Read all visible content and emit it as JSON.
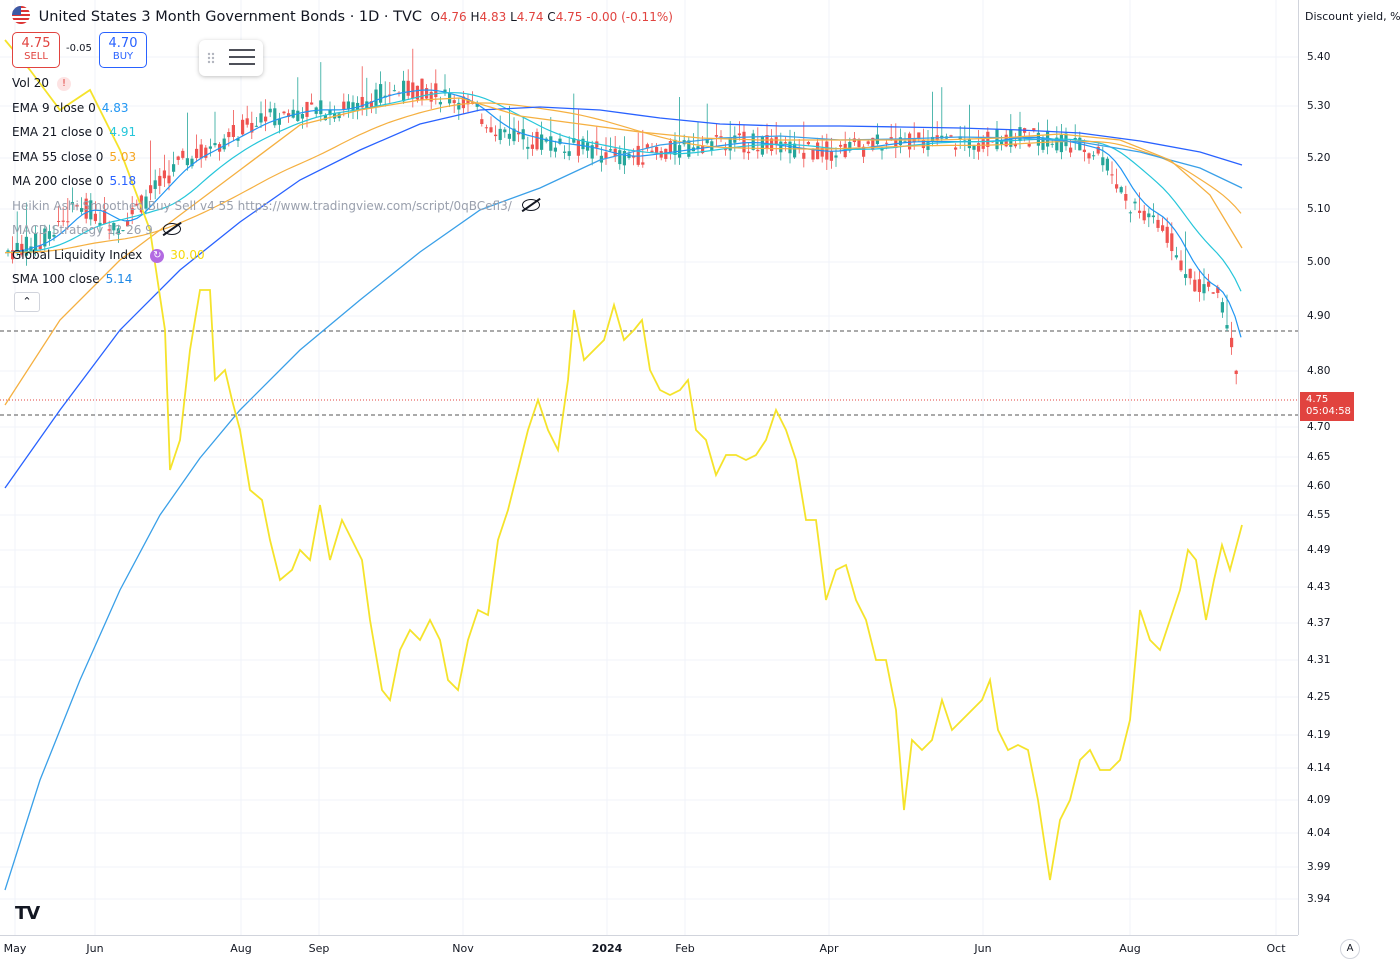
{
  "header": {
    "symbol_title": "United States 3 Month Government Bonds · 1D · TVC",
    "ohlc": {
      "o_label": "O",
      "o": "4.76",
      "h_label": "H",
      "h": "4.83",
      "l_label": "L",
      "l": "4.74",
      "c_label": "C",
      "c": "4.75",
      "change": "-0.00 (-0.11%)"
    },
    "flag_icon": "us-flag-icon"
  },
  "trade": {
    "sell_price": "4.75",
    "sell_label": "SELL",
    "spread": "-0.05",
    "buy_price": "4.70",
    "buy_label": "BUY"
  },
  "indicators": [
    {
      "name": "Vol 20",
      "value": "",
      "color": "#131722",
      "badge": "!"
    },
    {
      "name": "EMA 9 close 0",
      "value": "4.83",
      "color": "#2196f3"
    },
    {
      "name": "EMA 21 close 0",
      "value": "4.91",
      "color": "#26c6da"
    },
    {
      "name": "EMA 55 close 0",
      "value": "5.03",
      "color": "#f5a623"
    },
    {
      "name": "MA 200 close 0",
      "value": "5.18",
      "color": "#2962ff"
    },
    {
      "name": "Heikin Ashi Smoothed Buy Sell v4 55 https://www.tradingview.com/script/0qBCefl3/",
      "value": "",
      "hidden": true
    },
    {
      "name": "MACD Strategy 12 26 9",
      "value": "",
      "hidden": true
    },
    {
      "name": "Global Liquidity Index",
      "value": "30.00",
      "color": "#f5d90a",
      "sync": true
    },
    {
      "name": "SMA 100 close",
      "value": "5.14",
      "color": "#1e88e5"
    }
  ],
  "price_axis": {
    "title": "Discount yield, %",
    "ticks": [
      "5.40",
      "5.30",
      "5.20",
      "5.10",
      "5.00",
      "4.90",
      "4.80",
      "4.70",
      "4.65",
      "4.60",
      "4.55",
      "4.49",
      "4.43",
      "4.37",
      "4.31",
      "4.25",
      "4.19",
      "4.14",
      "4.09",
      "4.04",
      "3.99",
      "3.94"
    ],
    "last_price": "4.75",
    "countdown": "05:04:58",
    "last_price_color": "#e1433f"
  },
  "time_axis": {
    "labels": [
      "May",
      "Jun",
      "Aug",
      "Sep",
      "Nov",
      "2024",
      "Feb",
      "Apr",
      "Jun",
      "Aug",
      "Oct"
    ]
  },
  "corner_button": "A",
  "logo": "TV",
  "colors": {
    "up": "#26a69a",
    "down": "#ef5350",
    "liquidity": "#f5e32b",
    "ema9": "#2196f3",
    "ema21": "#26c6da",
    "ema55": "#f5b041",
    "ma200": "#2962ff",
    "sma100": "#1e88e5"
  }
}
